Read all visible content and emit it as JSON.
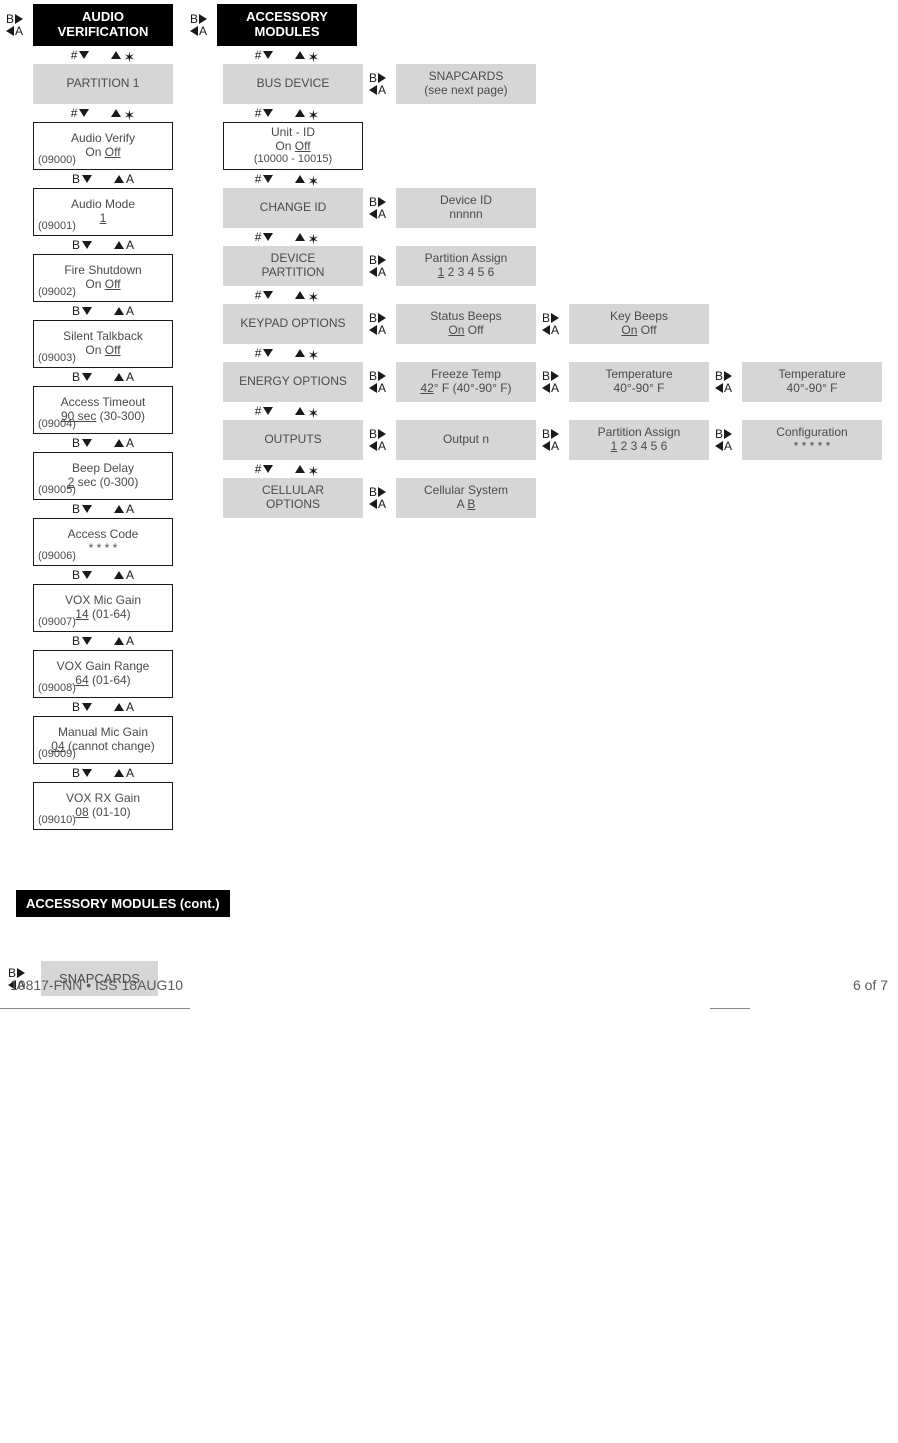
{
  "audio": {
    "header": "AUDIO VERIFICATION",
    "partition_label": "PARTITION 1",
    "items": [
      {
        "title": "Audio Verify",
        "val_pre": "On ",
        "val_u": "Off",
        "val_post": "",
        "code": "(09000)"
      },
      {
        "title": "Audio Mode",
        "val_pre": "",
        "val_u": "1",
        "val_post": "",
        "code": "(09001)"
      },
      {
        "title": "Fire Shutdown",
        "val_pre": "On ",
        "val_u": "Off",
        "val_post": "",
        "code": "(09002)"
      },
      {
        "title": "Silent Talkback",
        "val_pre": "On ",
        "val_u": "Off",
        "val_post": "",
        "code": "(09003)"
      },
      {
        "title": "Access Timeout",
        "val_pre": "",
        "val_u": "90 sec",
        "val_post": " (30-300)",
        "code": "(09004)"
      },
      {
        "title": "Beep Delay",
        "val_pre": "",
        "val_u": "2",
        "val_post": " sec (0-300)",
        "code": "(09005)"
      },
      {
        "title": "Access Code",
        "val_pre": "* * * *",
        "val_u": "",
        "val_post": "",
        "code": "(09006)"
      },
      {
        "title": "VOX Mic Gain",
        "val_pre": "",
        "val_u": "14",
        "val_post": " (01-64)",
        "code": "(09007)"
      },
      {
        "title": "VOX Gain Range",
        "val_pre": "",
        "val_u": "64",
        "val_post": " (01-64)",
        "code": "(09008)"
      },
      {
        "title": "Manual Mic Gain",
        "val_pre": "",
        "val_u": "04",
        "val_post": " (cannot change)",
        "code": "(09009)"
      },
      {
        "title": "VOX RX Gain",
        "val_pre": "",
        "val_u": "08",
        "val_post": " (01-10)",
        "code": "(09010)"
      }
    ]
  },
  "accessory": {
    "header": "ACCESSORY MODULES",
    "rows": [
      {
        "grey": "BUS DEVICE",
        "sub": [
          {
            "line1": "SNAPCARDS",
            "line2": "(see next page)"
          }
        ]
      },
      {
        "border": {
          "line1": "Unit - ID",
          "line2_pre": "On ",
          "line2_u": "Off",
          "line2_post": "",
          "line3": "(10000 - 10015)"
        }
      },
      {
        "grey": "CHANGE ID",
        "sub": [
          {
            "line1": "Device ID",
            "line2": "nnnnn"
          }
        ]
      },
      {
        "grey2": {
          "l1": "DEVICE",
          "l2": "PARTITION"
        },
        "sub": [
          {
            "line1": "Partition Assign",
            "line2_pre": "",
            "line2_u": "1",
            "line2_post": " 2 3 4 5 6"
          }
        ]
      },
      {
        "grey": "KEYPAD OPTIONS",
        "sub": [
          {
            "line1": "Status Beeps",
            "line2_pre": "",
            "line2_u": "On",
            "line2_post": " Off"
          },
          {
            "line1": "Key Beeps",
            "line2_pre": "",
            "line2_u": "On",
            "line2_post": " Off"
          }
        ]
      },
      {
        "grey": "ENERGY OPTIONS",
        "sub": [
          {
            "line1": "Freeze Temp",
            "line2_pre": "",
            "line2_u": "42",
            "line2_post": "° F (40°-90° F)"
          },
          {
            "line1": "Temperature",
            "line2": "40°-90° F"
          },
          {
            "line1": "Temperature",
            "line2": "40°-90° F"
          }
        ]
      },
      {
        "grey": "OUTPUTS",
        "sub": [
          {
            "line1": "Output n",
            "line2": ""
          },
          {
            "line1": "Partition Assign",
            "line2_pre": "",
            "line2_u": "1",
            "line2_post": " 2 3 4 5 6"
          },
          {
            "line1": "Configuration",
            "line2": "* * * * *"
          }
        ]
      },
      {
        "grey2": {
          "l1": "CELLULAR",
          "l2": "OPTIONS"
        },
        "sub": [
          {
            "line1": "Cellular System",
            "line2_pre": "A ",
            "line2_u": "B",
            "line2_post": ""
          }
        ]
      }
    ]
  },
  "cont_header": "ACCESSORY MODULES (cont.)",
  "snapcards_label": "SNAPCARDS",
  "footer_left": "10817-FNN • ISS 18AUG10",
  "footer_right": "6 of 7",
  "nav": {
    "hash": "#",
    "star": "✶",
    "B": "B",
    "A": "A"
  }
}
